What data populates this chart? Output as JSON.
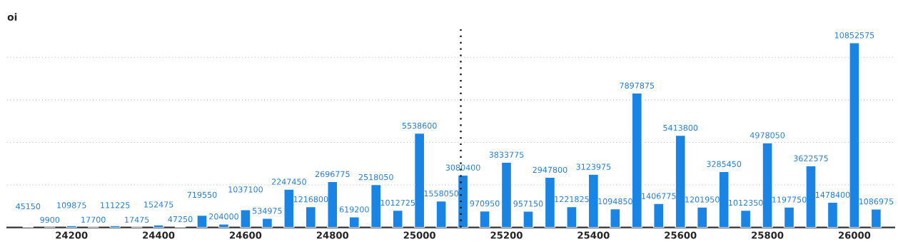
{
  "chart_data": {
    "type": "bar",
    "ylabel": "oi",
    "x": [
      24100,
      24150,
      24200,
      24250,
      24300,
      24350,
      24400,
      24450,
      24500,
      24550,
      24600,
      24650,
      24700,
      24750,
      24800,
      24850,
      24900,
      24950,
      25000,
      25050,
      25100,
      25150,
      25200,
      25250,
      25300,
      25350,
      25400,
      25450,
      25500,
      25550,
      25600,
      25650,
      25700,
      25750,
      25800,
      25850,
      25900,
      25950,
      26000,
      26050
    ],
    "values": [
      45150,
      9900,
      109875,
      17700,
      111225,
      17475,
      152475,
      47250,
      719550,
      204000,
      1037100,
      534975,
      2247450,
      1216800,
      2696775,
      619200,
      2518050,
      1012725,
      5538600,
      1558050,
      3080400,
      970950,
      3833775,
      957150,
      2947800,
      1221825,
      3123975,
      1094850,
      7897875,
      1406775,
      5413800,
      1201950,
      3285450,
      1012350,
      4978050,
      1197750,
      3622575,
      1478400,
      10852575,
      1086975
    ],
    "color": "#1a84e5",
    "data_labels": true,
    "xlim": [
      24052,
      26092
    ],
    "xticks": [
      24200,
      24400,
      24600,
      24800,
      25000,
      25200,
      25400,
      25600,
      25800,
      26000
    ],
    "ylim": [
      0,
      11800000
    ],
    "yticks": [
      {
        "value": 2500000,
        "label": null
      },
      {
        "value": 5000000,
        "label": null
      },
      {
        "value": 7500000,
        "label": null
      },
      {
        "value": 10000000,
        "label": null
      }
    ],
    "tick_labels": "x",
    "grid": "y",
    "ref_lines": [
      {
        "axis": "x",
        "value": 25095,
        "color": "#000000",
        "line_style": "dotted"
      }
    ]
  }
}
